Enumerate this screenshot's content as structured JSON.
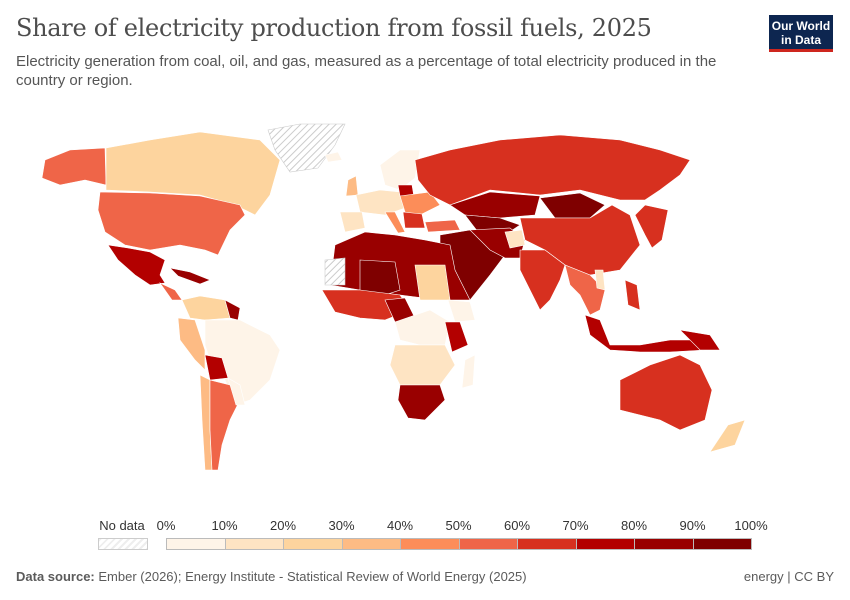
{
  "header": {
    "title": "Share of electricity production from fossil fuels, 2025",
    "subtitle": "Electricity generation from coal, oil, and gas, measured as a percentage of total electricity produced in the country or region.",
    "logo_line1": "Our World",
    "logo_line2": "in Data"
  },
  "legend": {
    "no_data_label": "No data",
    "tick_labels": [
      "0%",
      "10%",
      "20%",
      "30%",
      "40%",
      "50%",
      "60%",
      "70%",
      "80%",
      "90%",
      "100%"
    ],
    "bin_colors": [
      "#fef4e8",
      "#fee4c3",
      "#fdd49e",
      "#fdbb84",
      "#fc8d59",
      "#ef6548",
      "#d7301f",
      "#b30000",
      "#990000",
      "#7f0000"
    ]
  },
  "footer": {
    "source_label": "Data source:",
    "source_text": "Ember (2026); Energy Institute - Statistical Review of World Energy (2025)",
    "right_text": "energy | CC BY"
  }
}
